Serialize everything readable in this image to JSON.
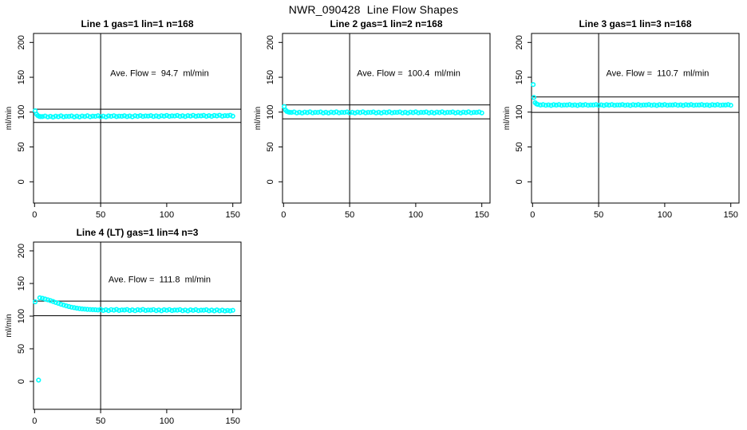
{
  "title": "NWR_090428  Line Flow Shapes",
  "colors": {
    "points": "#00FFFF",
    "axis": "#000000",
    "background": "#FFFFFF"
  },
  "chart_data": [
    {
      "type": "scatter",
      "title": "Line 1 gas=1 lin=1 n=168",
      "annotation": "Ave. Flow =  94.7  ml/min",
      "avg_flow_ml_min": 94.7,
      "xlabel": "",
      "ylabel": "ml/min",
      "x_ticks": [
        0,
        50,
        100,
        150
      ],
      "y_ticks": [
        0,
        50,
        100,
        150,
        200
      ],
      "xlim": [
        -1,
        156
      ],
      "ylim": [
        -30,
        213
      ],
      "vline_x": 50,
      "hlines": [
        104.2,
        85.2
      ],
      "marker": "open-circle",
      "grid_position": {
        "row": 0,
        "col": 0
      },
      "points": [
        [
          0.5,
          102
        ],
        [
          1.5,
          97
        ],
        [
          2.5,
          95
        ],
        [
          3.5,
          94
        ],
        [
          4.5,
          93.6
        ],
        [
          6,
          93.6
        ],
        [
          8,
          94.4
        ],
        [
          10,
          93.1
        ],
        [
          12,
          94.0
        ],
        [
          14,
          92.9
        ],
        [
          16,
          94.2
        ],
        [
          18,
          93.5
        ],
        [
          20,
          94.6
        ],
        [
          22,
          93.3
        ],
        [
          24,
          94.0
        ],
        [
          26,
          93.8
        ],
        [
          28,
          94.5
        ],
        [
          30,
          93.2
        ],
        [
          32,
          94.2
        ],
        [
          34,
          93.1
        ],
        [
          36,
          94.4
        ],
        [
          38,
          93.7
        ],
        [
          40,
          94.7
        ],
        [
          42,
          93.4
        ],
        [
          44,
          94.2
        ],
        [
          46,
          94.0
        ],
        [
          48,
          94.7
        ],
        [
          50,
          93.4
        ],
        [
          52,
          94.3
        ],
        [
          54,
          93.2
        ],
        [
          56,
          94.5
        ],
        [
          58,
          93.9
        ],
        [
          60,
          94.9
        ],
        [
          62,
          93.6
        ],
        [
          64,
          94.3
        ],
        [
          66,
          94.1
        ],
        [
          68,
          94.8
        ],
        [
          70,
          93.6
        ],
        [
          72,
          94.5
        ],
        [
          74,
          93.4
        ],
        [
          76,
          94.7
        ],
        [
          78,
          94.0
        ],
        [
          80,
          95.0
        ],
        [
          82,
          93.8
        ],
        [
          84,
          94.5
        ],
        [
          86,
          94.3
        ],
        [
          88,
          95.0
        ],
        [
          90,
          93.7
        ],
        [
          92,
          94.6
        ],
        [
          94,
          93.6
        ],
        [
          96,
          94.9
        ],
        [
          98,
          94.2
        ],
        [
          100,
          95.2
        ],
        [
          102,
          93.9
        ],
        [
          104,
          94.6
        ],
        [
          106,
          94.4
        ],
        [
          108,
          95.2
        ],
        [
          110,
          93.9
        ],
        [
          112,
          94.8
        ],
        [
          114,
          93.7
        ],
        [
          116,
          95.0
        ],
        [
          118,
          94.3
        ],
        [
          120,
          95.4
        ],
        [
          122,
          94.1
        ],
        [
          124,
          94.8
        ],
        [
          126,
          94.6
        ],
        [
          128,
          95.3
        ],
        [
          130,
          94.0
        ],
        [
          132,
          95.0
        ],
        [
          134,
          93.9
        ],
        [
          136,
          95.2
        ],
        [
          138,
          94.5
        ],
        [
          140,
          95.5
        ],
        [
          142,
          94.2
        ],
        [
          144,
          95.0
        ],
        [
          146,
          94.8
        ],
        [
          148,
          95.5
        ],
        [
          150,
          94.2
        ]
      ]
    },
    {
      "type": "scatter",
      "title": "Line 2 gas=1 lin=2 n=168",
      "annotation": "Ave. Flow =  100.4  ml/min",
      "avg_flow_ml_min": 100.4,
      "xlabel": "",
      "ylabel": "ml/min",
      "x_ticks": [
        0,
        50,
        100,
        150
      ],
      "y_ticks": [
        0,
        50,
        100,
        150,
        200
      ],
      "xlim": [
        -1,
        156
      ],
      "ylim": [
        -30,
        213
      ],
      "vline_x": 50,
      "hlines": [
        110.4,
        90.4
      ],
      "marker": "open-circle",
      "grid_position": {
        "row": 0,
        "col": 1
      },
      "points": [
        [
          0.5,
          108
        ],
        [
          1.5,
          103
        ],
        [
          2.5,
          101
        ],
        [
          3.5,
          100.2
        ],
        [
          4.5,
          99.8
        ],
        [
          6,
          99.5
        ],
        [
          8,
          100.2
        ],
        [
          10,
          98.9
        ],
        [
          12,
          99.8
        ],
        [
          14,
          98.7
        ],
        [
          16,
          100.0
        ],
        [
          18,
          99.3
        ],
        [
          20,
          100.3
        ],
        [
          22,
          99.0
        ],
        [
          24,
          99.7
        ],
        [
          26,
          99.5
        ],
        [
          28,
          100.2
        ],
        [
          30,
          98.9
        ],
        [
          32,
          99.8
        ],
        [
          34,
          98.7
        ],
        [
          36,
          100.0
        ],
        [
          38,
          99.3
        ],
        [
          40,
          100.3
        ],
        [
          42,
          99.0
        ],
        [
          44,
          99.7
        ],
        [
          46,
          99.5
        ],
        [
          48,
          100.2
        ],
        [
          50,
          98.9
        ],
        [
          52,
          99.8
        ],
        [
          54,
          98.7
        ],
        [
          56,
          100.0
        ],
        [
          58,
          99.3
        ],
        [
          60,
          100.3
        ],
        [
          62,
          99.0
        ],
        [
          64,
          99.7
        ],
        [
          66,
          99.5
        ],
        [
          68,
          100.2
        ],
        [
          70,
          98.9
        ],
        [
          72,
          99.8
        ],
        [
          74,
          98.7
        ],
        [
          76,
          100.0
        ],
        [
          78,
          99.3
        ],
        [
          80,
          100.3
        ],
        [
          82,
          99.0
        ],
        [
          84,
          99.7
        ],
        [
          86,
          99.5
        ],
        [
          88,
          100.2
        ],
        [
          90,
          98.9
        ],
        [
          92,
          99.8
        ],
        [
          94,
          98.7
        ],
        [
          96,
          100.0
        ],
        [
          98,
          99.3
        ],
        [
          100,
          100.3
        ],
        [
          102,
          99.0
        ],
        [
          104,
          99.7
        ],
        [
          106,
          99.5
        ],
        [
          108,
          100.2
        ],
        [
          110,
          98.9
        ],
        [
          112,
          99.8
        ],
        [
          114,
          98.7
        ],
        [
          116,
          100.0
        ],
        [
          118,
          99.3
        ],
        [
          120,
          100.3
        ],
        [
          122,
          99.0
        ],
        [
          124,
          99.7
        ],
        [
          126,
          99.5
        ],
        [
          128,
          100.2
        ],
        [
          130,
          98.9
        ],
        [
          132,
          99.8
        ],
        [
          134,
          98.7
        ],
        [
          136,
          100.0
        ],
        [
          138,
          99.3
        ],
        [
          140,
          100.3
        ],
        [
          142,
          99.0
        ],
        [
          144,
          99.7
        ],
        [
          146,
          99.5
        ],
        [
          148,
          100.2
        ],
        [
          150,
          98.9
        ]
      ]
    },
    {
      "type": "scatter",
      "title": "Line 3 gas=1 lin=3 n=168",
      "annotation": "Ave. Flow =  110.7  ml/min",
      "avg_flow_ml_min": 110.7,
      "xlabel": "",
      "ylabel": "ml/min",
      "x_ticks": [
        0,
        50,
        100,
        150
      ],
      "y_ticks": [
        0,
        50,
        100,
        150,
        200
      ],
      "xlim": [
        -1,
        156
      ],
      "ylim": [
        -30,
        213
      ],
      "vline_x": 50,
      "hlines": [
        121.8,
        99.6
      ],
      "marker": "open-circle",
      "grid_position": {
        "row": 0,
        "col": 2
      },
      "points": [
        [
          0.5,
          139.5
        ],
        [
          1,
          121
        ],
        [
          2,
          113.5
        ],
        [
          3,
          111.8
        ],
        [
          4,
          111
        ],
        [
          6,
          110.2
        ],
        [
          8,
          110.7
        ],
        [
          10,
          109.8
        ],
        [
          12,
          110.4
        ],
        [
          14,
          109.6
        ],
        [
          16,
          110.6
        ],
        [
          18,
          110.1
        ],
        [
          20,
          110.8
        ],
        [
          22,
          109.8
        ],
        [
          24,
          110.3
        ],
        [
          26,
          110.2
        ],
        [
          28,
          110.7
        ],
        [
          30,
          109.8
        ],
        [
          32,
          110.4
        ],
        [
          34,
          109.6
        ],
        [
          36,
          110.6
        ],
        [
          38,
          110.1
        ],
        [
          40,
          110.8
        ],
        [
          42,
          109.8
        ],
        [
          44,
          110.3
        ],
        [
          46,
          110.2
        ],
        [
          48,
          110.7
        ],
        [
          50,
          109.8
        ],
        [
          52,
          110.4
        ],
        [
          54,
          109.6
        ],
        [
          56,
          110.6
        ],
        [
          58,
          110.1
        ],
        [
          60,
          110.8
        ],
        [
          62,
          109.8
        ],
        [
          64,
          110.3
        ],
        [
          66,
          110.2
        ],
        [
          68,
          110.7
        ],
        [
          70,
          109.8
        ],
        [
          72,
          110.4
        ],
        [
          74,
          109.6
        ],
        [
          76,
          110.6
        ],
        [
          78,
          110.1
        ],
        [
          80,
          110.8
        ],
        [
          82,
          109.8
        ],
        [
          84,
          110.3
        ],
        [
          86,
          110.2
        ],
        [
          88,
          110.7
        ],
        [
          90,
          109.8
        ],
        [
          92,
          110.4
        ],
        [
          94,
          109.6
        ],
        [
          96,
          110.6
        ],
        [
          98,
          110.1
        ],
        [
          100,
          110.8
        ],
        [
          102,
          109.8
        ],
        [
          104,
          110.3
        ],
        [
          106,
          110.2
        ],
        [
          108,
          110.7
        ],
        [
          110,
          109.8
        ],
        [
          112,
          110.4
        ],
        [
          114,
          109.6
        ],
        [
          116,
          110.6
        ],
        [
          118,
          110.1
        ],
        [
          120,
          110.8
        ],
        [
          122,
          109.8
        ],
        [
          124,
          110.3
        ],
        [
          126,
          110.2
        ],
        [
          128,
          110.7
        ],
        [
          130,
          109.8
        ],
        [
          132,
          110.4
        ],
        [
          134,
          109.6
        ],
        [
          136,
          110.6
        ],
        [
          138,
          110.1
        ],
        [
          140,
          110.8
        ],
        [
          142,
          109.8
        ],
        [
          144,
          110.3
        ],
        [
          146,
          110.2
        ],
        [
          148,
          110.7
        ],
        [
          150,
          109.8
        ]
      ]
    },
    {
      "type": "scatter",
      "title": "Line 4 (LT) gas=1 lin=4 n=3",
      "annotation": "Ave. Flow =  111.8  ml/min",
      "avg_flow_ml_min": 111.8,
      "xlabel": "",
      "ylabel": "ml/min",
      "x_ticks": [
        0,
        50,
        100,
        150
      ],
      "y_ticks": [
        0,
        50,
        100,
        150,
        200
      ],
      "xlim": [
        -1,
        156
      ],
      "ylim": [
        -42,
        214
      ],
      "vline_x": 50,
      "hlines": [
        123.0,
        100.6
      ],
      "marker": "open-circle",
      "grid_position": {
        "row": 1,
        "col": 0
      },
      "points": [
        [
          0.5,
          122
        ],
        [
          3,
          2
        ],
        [
          4,
          128
        ],
        [
          6,
          127.3
        ],
        [
          8,
          126.2
        ],
        [
          10,
          125.0
        ],
        [
          12,
          123.8
        ],
        [
          14,
          122.4
        ],
        [
          16,
          121.0
        ],
        [
          18,
          119.6
        ],
        [
          20,
          118.2
        ],
        [
          22,
          116.9
        ],
        [
          24,
          115.7
        ],
        [
          26,
          114.6
        ],
        [
          28,
          113.7
        ],
        [
          30,
          112.9
        ],
        [
          32,
          112.2
        ],
        [
          34,
          111.6
        ],
        [
          36,
          111.1
        ],
        [
          38,
          110.7
        ],
        [
          40,
          110.4
        ],
        [
          42,
          110.1
        ],
        [
          44,
          109.9
        ],
        [
          46,
          109.7
        ],
        [
          48,
          109.4
        ],
        [
          50,
          110.3
        ],
        [
          52,
          108.6
        ],
        [
          54,
          109.8
        ],
        [
          56,
          108.4
        ],
        [
          58,
          110.0
        ],
        [
          60,
          109.1
        ],
        [
          62,
          110.3
        ],
        [
          64,
          108.7
        ],
        [
          66,
          109.5
        ],
        [
          68,
          109.3
        ],
        [
          70,
          110.1
        ],
        [
          72,
          108.5
        ],
        [
          74,
          109.6
        ],
        [
          76,
          108.3
        ],
        [
          78,
          109.8
        ],
        [
          80,
          109.0
        ],
        [
          82,
          110.2
        ],
        [
          84,
          108.6
        ],
        [
          86,
          109.4
        ],
        [
          88,
          109.2
        ],
        [
          90,
          110.0
        ],
        [
          92,
          108.4
        ],
        [
          94,
          109.5
        ],
        [
          96,
          108.2
        ],
        [
          98,
          109.7
        ],
        [
          100,
          108.9
        ],
        [
          102,
          110.0
        ],
        [
          104,
          108.5
        ],
        [
          106,
          109.3
        ],
        [
          108,
          109.1
        ],
        [
          110,
          109.9
        ],
        [
          112,
          108.3
        ],
        [
          114,
          109.4
        ],
        [
          116,
          108.1
        ],
        [
          118,
          109.6
        ],
        [
          120,
          108.8
        ],
        [
          122,
          109.9
        ],
        [
          124,
          108.4
        ],
        [
          126,
          109.2
        ],
        [
          128,
          109.0
        ],
        [
          130,
          109.8
        ],
        [
          132,
          108.2
        ],
        [
          134,
          109.3
        ],
        [
          136,
          108.0
        ],
        [
          138,
          109.5
        ],
        [
          140,
          108.2
        ],
        [
          142,
          109.2
        ],
        [
          144,
          107.9
        ],
        [
          146,
          108.8
        ],
        [
          148,
          108.1
        ],
        [
          150,
          108.9
        ]
      ]
    }
  ]
}
